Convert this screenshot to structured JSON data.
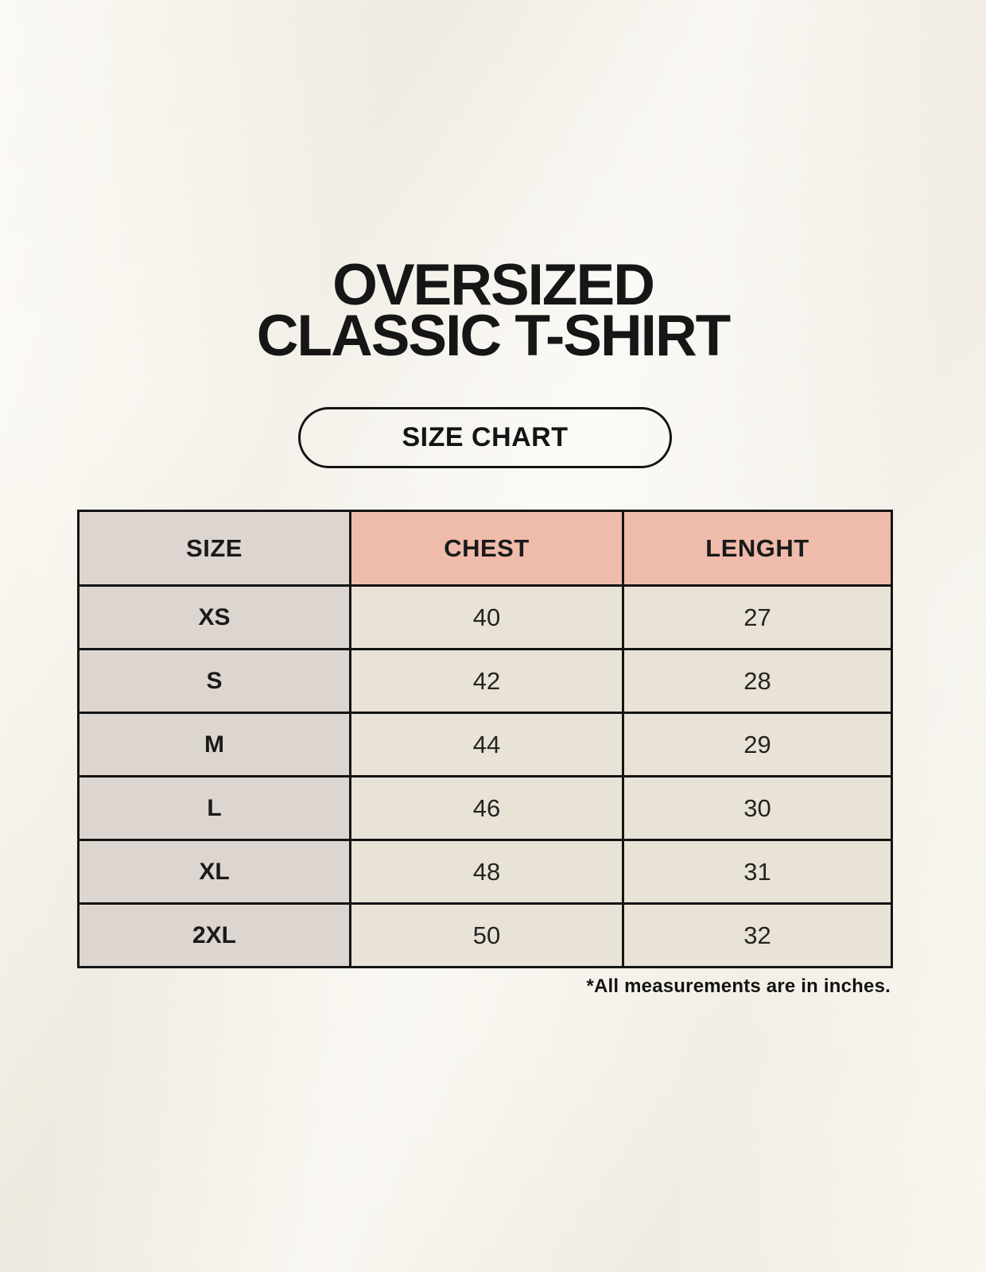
{
  "header": {
    "title_line1": "OVERSIZED",
    "title_line2": "CLASSIC T-SHIRT",
    "badge_label": "SIZE CHART"
  },
  "chart_data": {
    "type": "table",
    "title": "OVERSIZED CLASSIC T-SHIRT",
    "columns": [
      "SIZE",
      "CHEST",
      "LENGHT"
    ],
    "rows": [
      [
        "XS",
        40,
        27
      ],
      [
        "S",
        42,
        28
      ],
      [
        "M",
        44,
        29
      ],
      [
        "L",
        46,
        30
      ],
      [
        "XL",
        48,
        31
      ],
      [
        "2XL",
        50,
        32
      ]
    ],
    "units": "inches",
    "footnote": "*All measurements are in inches."
  },
  "colors": {
    "background": "#f7f3ea",
    "size_column_bg": "#ddd5cf",
    "measure_header_bg": "#efbcab",
    "value_cell_bg": "#e9e2d6",
    "border": "#141414",
    "text": "#1a1a1a"
  }
}
